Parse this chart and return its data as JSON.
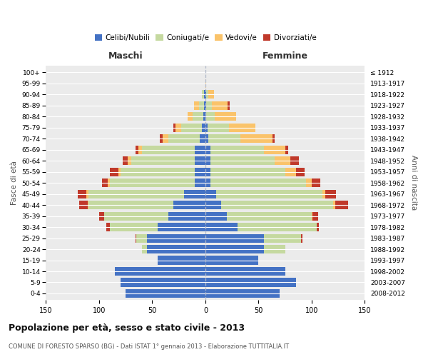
{
  "age_groups": [
    "0-4",
    "5-9",
    "10-14",
    "15-19",
    "20-24",
    "25-29",
    "30-34",
    "35-39",
    "40-44",
    "45-49",
    "50-54",
    "55-59",
    "60-64",
    "65-69",
    "70-74",
    "75-79",
    "80-84",
    "85-89",
    "90-94",
    "95-99",
    "100+"
  ],
  "birth_years": [
    "2008-2012",
    "2003-2007",
    "1998-2002",
    "1993-1997",
    "1988-1992",
    "1983-1987",
    "1978-1982",
    "1973-1977",
    "1968-1972",
    "1963-1967",
    "1958-1962",
    "1953-1957",
    "1948-1952",
    "1943-1947",
    "1938-1942",
    "1933-1937",
    "1928-1932",
    "1923-1927",
    "1918-1922",
    "1913-1917",
    "≤ 1912"
  ],
  "male": {
    "celibi": [
      75,
      80,
      85,
      45,
      55,
      55,
      45,
      35,
      30,
      20,
      10,
      10,
      10,
      10,
      5,
      3,
      2,
      1,
      1,
      0,
      0
    ],
    "coniugati": [
      0,
      0,
      0,
      0,
      5,
      10,
      45,
      60,
      80,
      90,
      80,
      70,
      60,
      50,
      30,
      20,
      10,
      5,
      2,
      0,
      0
    ],
    "vedovi": [
      0,
      0,
      0,
      0,
      0,
      0,
      0,
      0,
      1,
      2,
      2,
      2,
      3,
      3,
      5,
      5,
      5,
      5,
      0,
      0,
      0
    ],
    "divorziati": [
      0,
      0,
      0,
      0,
      0,
      1,
      3,
      5,
      8,
      8,
      5,
      8,
      5,
      3,
      3,
      2,
      0,
      0,
      0,
      0,
      0
    ]
  },
  "female": {
    "nubili": [
      70,
      85,
      75,
      50,
      55,
      55,
      30,
      20,
      15,
      10,
      5,
      5,
      5,
      5,
      3,
      2,
      1,
      1,
      1,
      0,
      0
    ],
    "coniugate": [
      0,
      0,
      0,
      0,
      20,
      35,
      75,
      80,
      105,
      100,
      90,
      70,
      60,
      50,
      30,
      20,
      8,
      5,
      2,
      0,
      0
    ],
    "vedove": [
      0,
      0,
      0,
      0,
      0,
      0,
      0,
      1,
      2,
      3,
      5,
      10,
      15,
      20,
      30,
      25,
      20,
      15,
      5,
      1,
      0
    ],
    "divorziate": [
      0,
      0,
      0,
      0,
      0,
      1,
      2,
      5,
      12,
      10,
      8,
      8,
      8,
      3,
      2,
      0,
      0,
      2,
      0,
      0,
      0
    ]
  },
  "colors": {
    "celibi": "#4472C4",
    "coniugati": "#C5D9A0",
    "vedovi": "#FAC36A",
    "divorziati": "#C0392B"
  },
  "title": "Popolazione per età, sesso e stato civile - 2013",
  "subtitle": "COMUNE DI FORESTO SPARSO (BG) - Dati ISTAT 1° gennaio 2013 - Elaborazione TUTTITALIA.IT",
  "xlabel_left": "Maschi",
  "xlabel_right": "Femmine",
  "ylabel_left": "Fasce di età",
  "ylabel_right": "Anni di nascita",
  "xlim": 150,
  "legend_labels": [
    "Celibi/Nubili",
    "Coniugati/e",
    "Vedovi/e",
    "Divorziati/e"
  ],
  "background_color": "#ffffff",
  "grid_color": "#cccccc"
}
